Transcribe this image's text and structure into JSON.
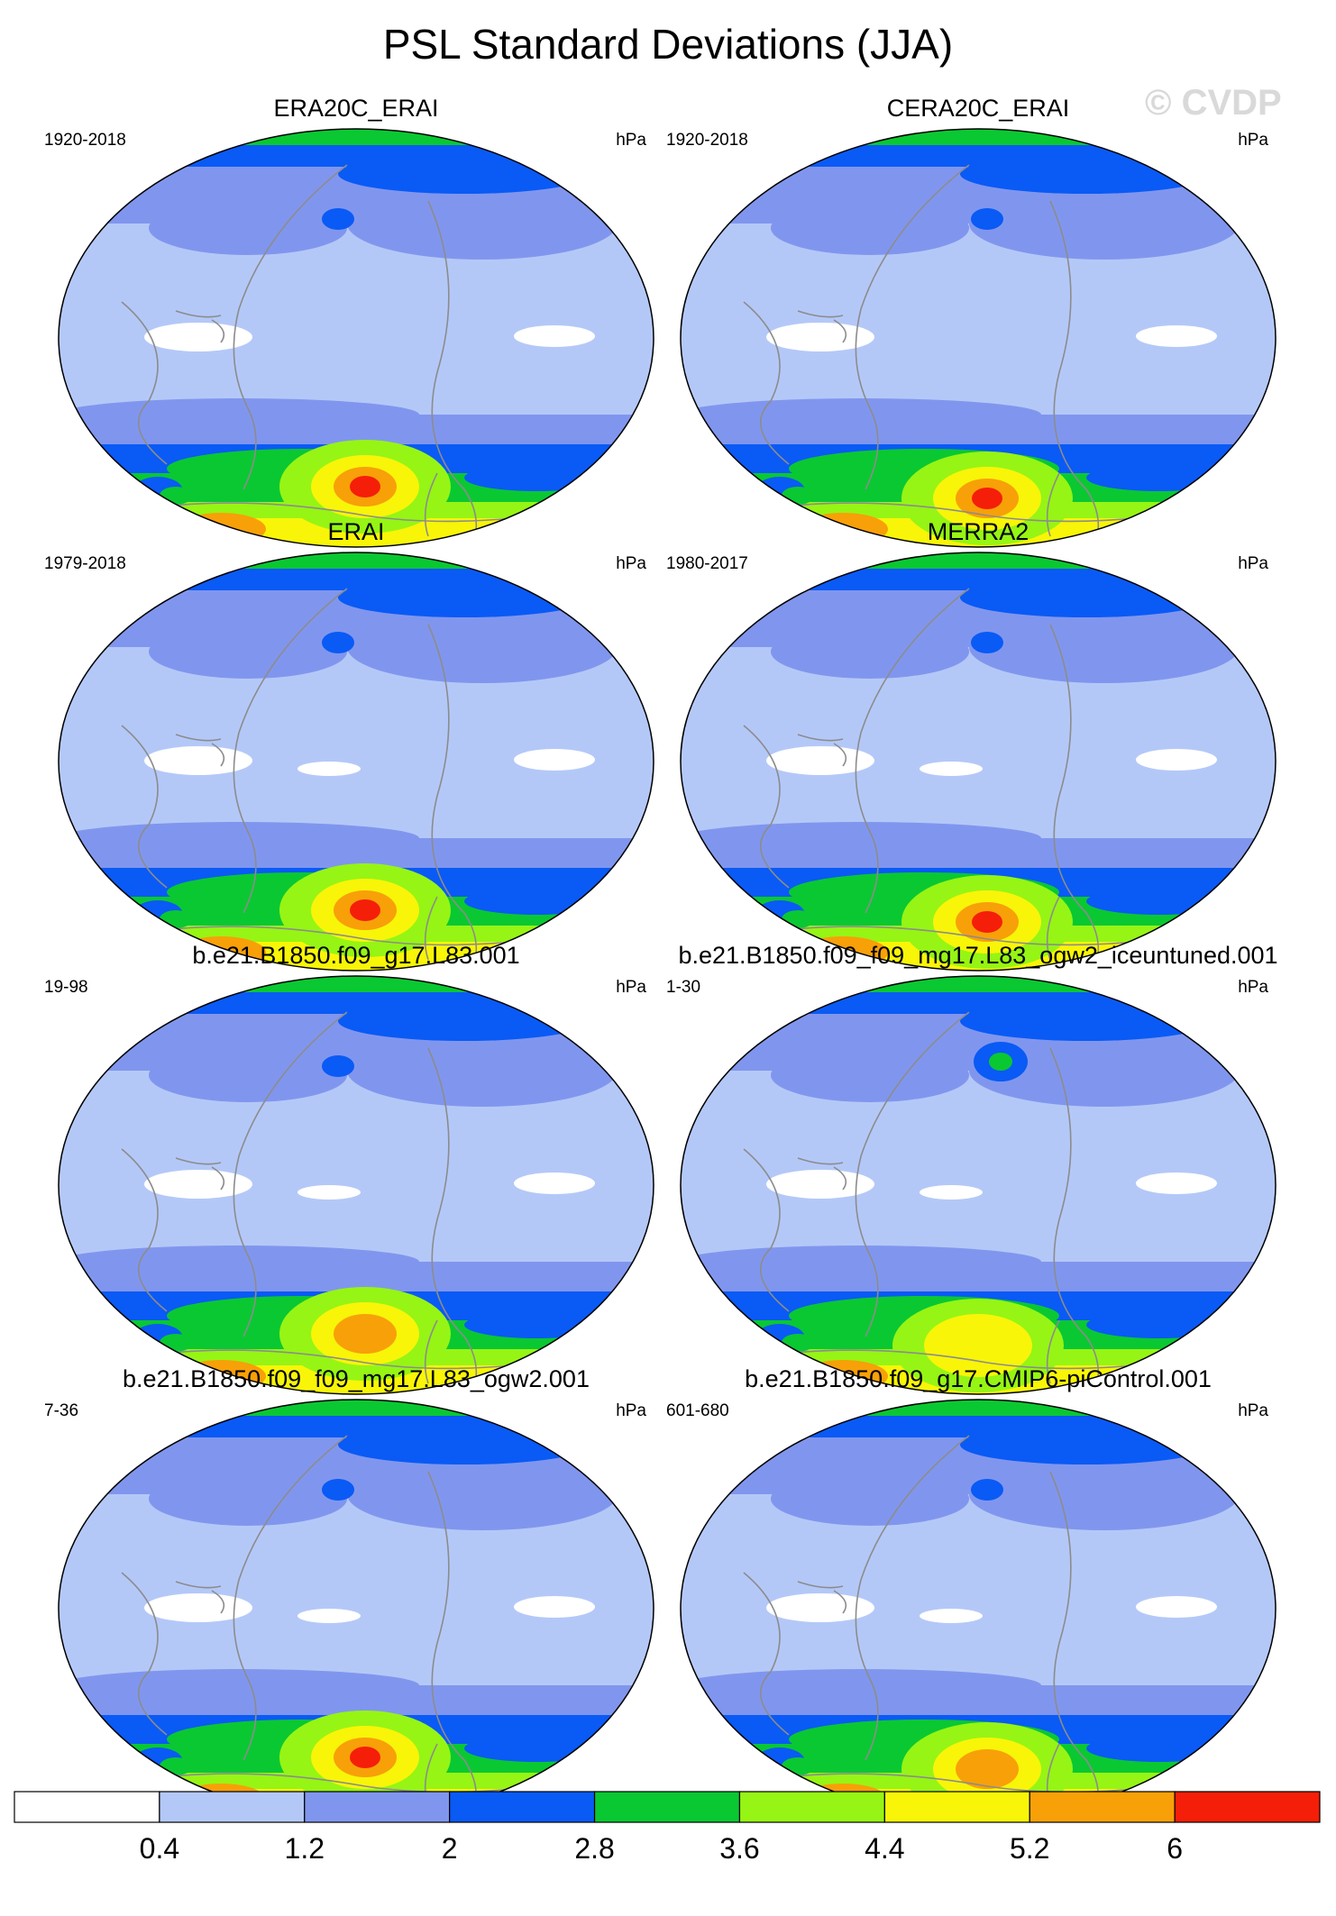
{
  "figure": {
    "title": "PSL Standard Deviations (JJA)",
    "watermark": "© CVDP"
  },
  "colors": {
    "white": "#ffffff",
    "lightblue": "#b4c8f8",
    "midblue": "#8096ee",
    "blue": "#0a5af5",
    "green": "#0ac832",
    "lime": "#96f514",
    "yellow": "#f8f508",
    "orange": "#f8a008",
    "red": "#f51e08",
    "coast": "#8c8c8c"
  },
  "chart_data": [
    {
      "type": "heatmap",
      "title": "ERA20C_ERAI",
      "period": "1920-2018",
      "units": "hPa",
      "peak_level": "red"
    },
    {
      "type": "heatmap",
      "title": "CERA20C_ERAI",
      "period": "1920-2018",
      "units": "hPa",
      "peak_level": "red"
    },
    {
      "type": "heatmap",
      "title": "ERAI",
      "period": "1979-2018",
      "units": "hPa",
      "peak_level": "red"
    },
    {
      "type": "heatmap",
      "title": "MERRA2",
      "period": "1980-2017",
      "units": "hPa",
      "peak_level": "red"
    },
    {
      "type": "heatmap",
      "title": "b.e21.B1850.f09_g17.L83.001",
      "period": "19-98",
      "units": "hPa",
      "peak_level": "orange"
    },
    {
      "type": "heatmap",
      "title": "b.e21.B1850.f09_f09_mg17.L83_ogw2_iceuntuned.001",
      "period": "1-30",
      "units": "hPa",
      "peak_level": "yellow"
    },
    {
      "type": "heatmap",
      "title": "b.e21.B1850.f09_f09_mg17.L83_ogw2.001",
      "period": "7-36",
      "units": "hPa",
      "peak_level": "red"
    },
    {
      "type": "heatmap",
      "title": "b.e21.B1850.f09_g17.CMIP6-piControl.001",
      "period": "601-680",
      "units": "hPa",
      "peak_level": "orange"
    }
  ],
  "colorbar": {
    "labels": [
      "0.4",
      "1.2",
      "2",
      "2.8",
      "3.6",
      "4.4",
      "5.2",
      "6"
    ],
    "levels": [
      0.4,
      1.2,
      2.0,
      2.8,
      3.6,
      4.4,
      5.2,
      6.0
    ],
    "fill_colors": [
      "#ffffff",
      "#b4c8f8",
      "#8096ee",
      "#0a5af5",
      "#0ac832",
      "#96f514",
      "#f8f508",
      "#f8a008",
      "#f51e08"
    ]
  }
}
